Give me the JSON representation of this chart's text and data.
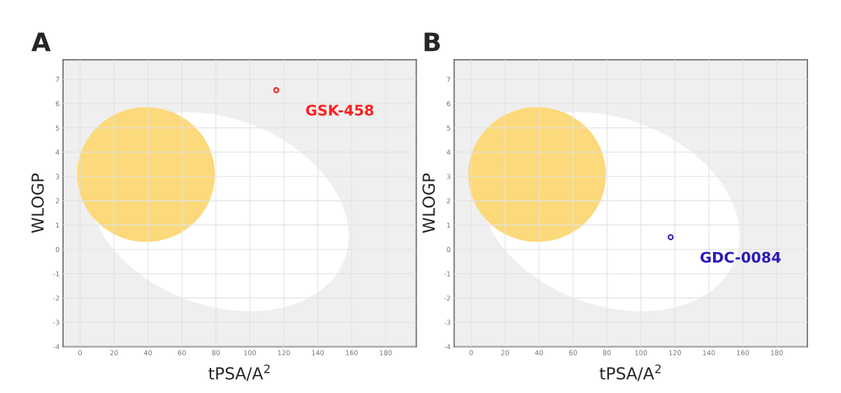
{
  "chart_data": [
    {
      "type": "scatter",
      "title": "A",
      "xlabel": "tPSA/A$^{2}$",
      "ylabel": "WLOGP",
      "xlim": [
        -10,
        198
      ],
      "ylim": [
        -4,
        7.8
      ],
      "xticks": [
        0,
        20,
        40,
        60,
        80,
        100,
        120,
        140,
        160,
        180
      ],
      "yticks": [
        {
          "value": -4,
          "label": "-4"
        },
        {
          "value": -3,
          "label": "-3"
        },
        {
          "value": -2,
          "label": "-2"
        },
        {
          "value": -1,
          "label": "-1"
        },
        0,
        1,
        2,
        3,
        4,
        5,
        6,
        7
      ],
      "grid": true,
      "marker": "circle",
      "series": [
        {
          "color": "#ff2020",
          "x": [
            115.5
          ],
          "values": [
            6.55
          ]
        }
      ],
      "annotations": [
        {
          "text": "GSK-458",
          "x": 115.5,
          "y": 6.55
        }
      ]
    },
    {
      "type": "scatter",
      "title": "B",
      "xlabel": "tPSA/A$^{2}$",
      "ylabel": "WLOGP",
      "xlim": [
        -10,
        198
      ],
      "ylim": [
        -4,
        7.8
      ],
      "xticks": [
        0,
        20,
        40,
        60,
        80,
        100,
        120,
        140,
        160,
        180
      ],
      "yticks": [
        {
          "value": -4,
          "label": "-4"
        },
        {
          "value": -3,
          "label": "-3"
        },
        {
          "value": -2,
          "label": "-2"
        },
        {
          "value": -1,
          "label": "-1"
        },
        0,
        1,
        2,
        3,
        4,
        5,
        6,
        7
      ],
      "grid": true,
      "marker": "circle",
      "series": [
        {
          "color": "#2a1ab8",
          "x": [
            117.5
          ],
          "values": [
            0.5
          ]
        }
      ],
      "annotations": [
        {
          "text": "GDC-0084",
          "x": 117.5,
          "y": 0.5
        }
      ]
    }
  ]
}
